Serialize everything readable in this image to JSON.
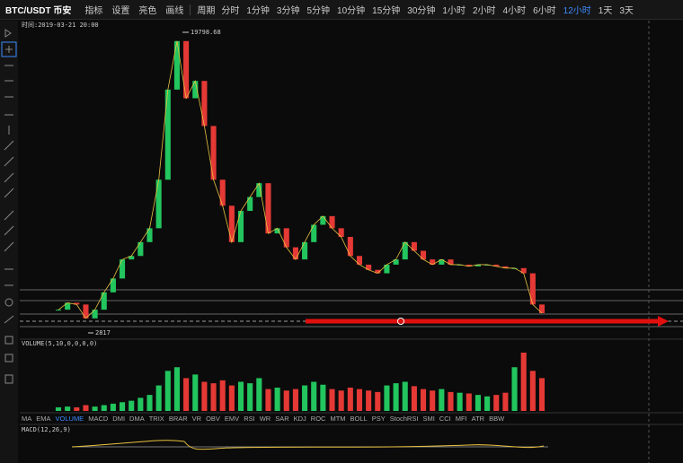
{
  "toolbar": {
    "symbol": "BTC/USDT 币安",
    "buttons": [
      "指标",
      "设置",
      "亮色",
      "画线"
    ],
    "period_label": "周期",
    "periods": [
      "分时",
      "1分钟",
      "3分钟",
      "5分钟",
      "10分钟",
      "15分钟",
      "30分钟",
      "1小时",
      "2小时",
      "4小时",
      "6小时",
      "12小时",
      "1天",
      "3天"
    ],
    "active_period": "12小时"
  },
  "chart": {
    "time_label": "时间:2019-03-21 20:00",
    "high": 19798.68,
    "low": 2817,
    "closes": [
      4000,
      4400,
      4300,
      3500,
      4000,
      5000,
      5800,
      6900,
      7100,
      7900,
      8700,
      11500,
      16700,
      19500,
      16200,
      17200,
      14600,
      11500,
      10000,
      7900,
      9700,
      10500,
      11300,
      8400,
      8700,
      7600,
      6900,
      7900,
      8900,
      9400,
      8700,
      8200,
      7100,
      6600,
      6300,
      6100,
      6600,
      6900,
      7900,
      7400,
      6900,
      6600,
      6900,
      6600,
      6600,
      6500,
      6600,
      6600,
      6500,
      6400,
      6400,
      6100,
      4300,
      3800
    ],
    "volumes": [
      5,
      6,
      5,
      8,
      6,
      8,
      10,
      12,
      14,
      18,
      22,
      35,
      55,
      60,
      45,
      50,
      40,
      38,
      42,
      35,
      40,
      38,
      45,
      30,
      32,
      28,
      30,
      35,
      40,
      36,
      30,
      28,
      32,
      30,
      28,
      26,
      35,
      38,
      40,
      34,
      30,
      28,
      30,
      26,
      25,
      24,
      22,
      20,
      22,
      25,
      60,
      80,
      55,
      45
    ],
    "volume_label": "VOLUME(5,10,0,0,0,0)",
    "macd_label": "MACD(12,26,9)",
    "tabs": [
      "MA",
      "EMA",
      "VOLUME",
      "MACD",
      "DMI",
      "DMA",
      "TRIX",
      "BRAR",
      "VR",
      "OBV",
      "EMV",
      "RSI",
      "WR",
      "SAR",
      "KDJ",
      "ROC",
      "MTM",
      "BOLL",
      "PSY",
      "StochRSI",
      "SMI",
      "CCI",
      "MFI",
      "ATR",
      "BBW"
    ],
    "active_tab": "VOLUME"
  }
}
